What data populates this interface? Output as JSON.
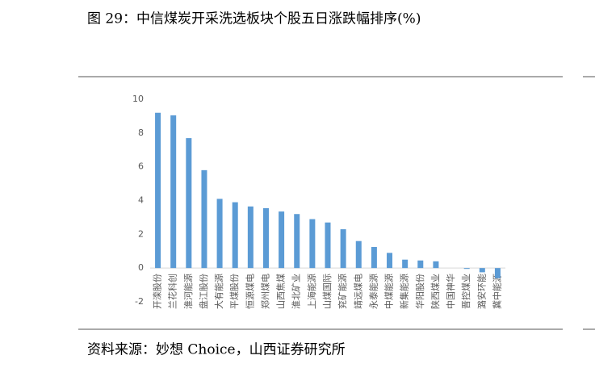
{
  "title": "图 29：中信煤炭开采洗选板块个股五日涨跌幅排序(%)",
  "source": "资料来源：妙想 Choice，山西证券研究所",
  "chart_data": {
    "type": "bar",
    "categories": [
      "开滦股份",
      "兰花科创",
      "淮河能源",
      "盘江股份",
      "大有能源",
      "平煤股份",
      "恒源煤电",
      "郑州煤电",
      "山西焦煤",
      "淮北矿业",
      "上海能源",
      "山煤国际",
      "兖矿能源",
      "靖远煤电",
      "永泰能源",
      "中煤能源",
      "新集能源",
      "华阳股份",
      "陕西煤业",
      "中国神华",
      "晋控煤业",
      "潞安环能",
      "冀中能源"
    ],
    "values": [
      9.2,
      9.05,
      7.7,
      5.8,
      4.1,
      3.9,
      3.65,
      3.55,
      3.35,
      3.2,
      2.9,
      2.7,
      2.3,
      1.6,
      1.25,
      0.9,
      0.5,
      0.45,
      0.4,
      0,
      -0.05,
      -0.25,
      -0.6
    ],
    "color": "#5b9bd5",
    "ylim": [
      -2,
      10
    ],
    "yticks": [
      -2,
      0,
      2,
      4,
      6,
      8,
      10
    ],
    "grid": false
  }
}
